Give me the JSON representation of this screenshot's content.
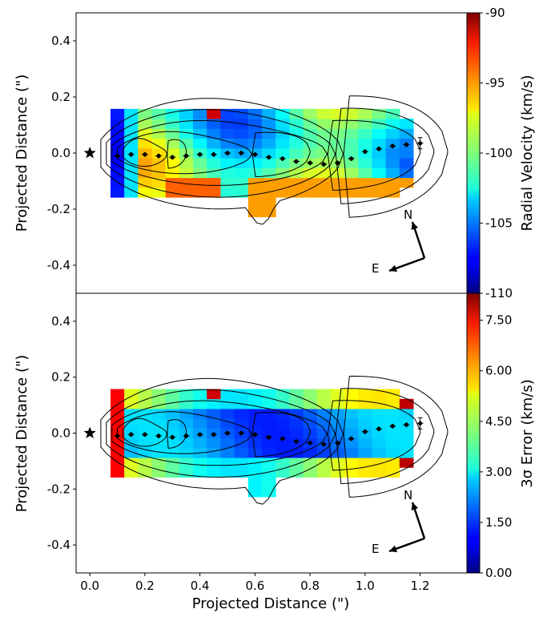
{
  "chart_data": [
    {
      "type": "heatmap",
      "title": "",
      "xlabel": "",
      "ylabel": "Projected Distance (\")",
      "xlim": [
        -0.05,
        1.37
      ],
      "ylim": [
        -0.5,
        0.5
      ],
      "yticks": [
        "0.4",
        "0.2",
        "0.0",
        "-0.2",
        "-0.4"
      ],
      "colorbar": {
        "label": "Radial Velocity (km/s)",
        "range": [
          -110,
          -90
        ],
        "tick_labels": [
          "-90",
          "-95",
          "-100",
          "-105",
          "-110"
        ]
      },
      "star_position": [
        0.0,
        0.0
      ],
      "jet_centroid_points": {
        "x": [
          0.1,
          0.15,
          0.2,
          0.25,
          0.3,
          0.35,
          0.4,
          0.45,
          0.5,
          0.55,
          0.6,
          0.65,
          0.7,
          0.75,
          0.8,
          0.85,
          0.9,
          0.95,
          1.0,
          1.05,
          1.1,
          1.15,
          1.2
        ],
        "y": [
          -0.01,
          -0.005,
          -0.005,
          -0.01,
          -0.015,
          -0.01,
          -0.005,
          -0.005,
          0.0,
          0.0,
          -0.005,
          -0.015,
          -0.02,
          -0.03,
          -0.035,
          -0.04,
          -0.035,
          -0.02,
          0.005,
          0.015,
          0.025,
          0.03,
          0.035
        ]
      },
      "compass": {
        "north": "N",
        "east": "E"
      }
    },
    {
      "type": "heatmap",
      "title": "",
      "xlabel": "Projected Distance (\")",
      "ylabel": "Projected Distance (\")",
      "xlim": [
        -0.05,
        1.37
      ],
      "ylim": [
        -0.5,
        0.5
      ],
      "xticks": [
        "0.0",
        "0.2",
        "0.4",
        "0.6",
        "0.8",
        "1.0",
        "1.2"
      ],
      "yticks": [
        "0.4",
        "0.2",
        "0.0",
        "-0.2",
        "-0.4"
      ],
      "colorbar": {
        "label": "3σ Error (km/s)",
        "range": [
          0,
          8.3
        ],
        "tick_labels": [
          "7.50",
          "6.00",
          "4.50",
          "3.00",
          "1.50",
          "0.00"
        ]
      },
      "star_position": [
        0.0,
        0.0
      ],
      "compass": {
        "north": "N",
        "east": "E"
      }
    }
  ]
}
